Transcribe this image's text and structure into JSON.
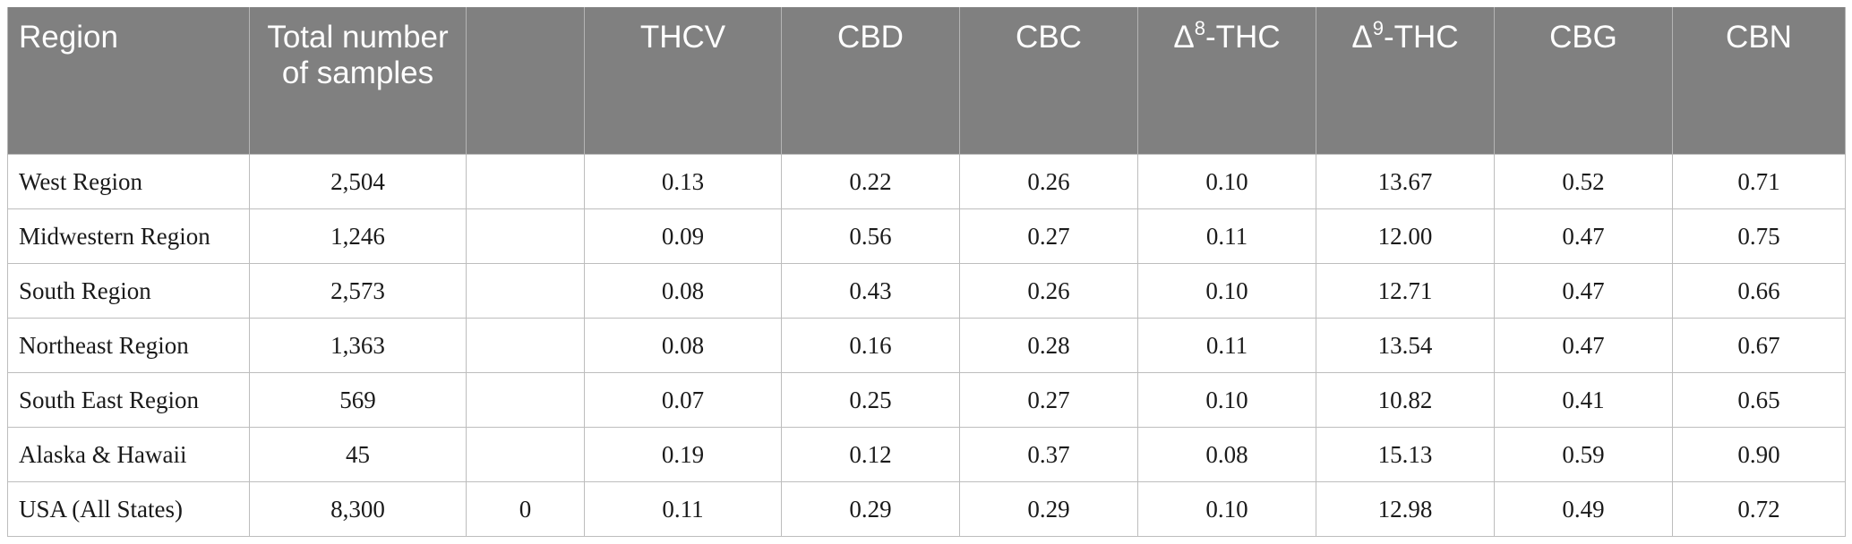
{
  "table": {
    "headers": {
      "region": "Region",
      "total": "Total number of samples",
      "blank": "",
      "thcv": "THCV",
      "cbd": "CBD",
      "cbc": "CBC",
      "d8_prefix": "Δ",
      "d8_sup": "8",
      "d8_suffix": "-THC",
      "d9_prefix": "Δ",
      "d9_sup": "9",
      "d9_suffix": "-THC",
      "cbg": "CBG",
      "cbn": "CBN"
    },
    "rows": [
      {
        "region": "West Region",
        "total": "2,504",
        "blank": "",
        "thcv": "0.13",
        "cbd": "0.22",
        "cbc": "0.26",
        "d8": "0.10",
        "d9": "13.67",
        "cbg": "0.52",
        "cbn": "0.71"
      },
      {
        "region": "Midwestern Region",
        "total": "1,246",
        "blank": "",
        "thcv": "0.09",
        "cbd": "0.56",
        "cbc": "0.27",
        "d8": "0.11",
        "d9": "12.00",
        "cbg": "0.47",
        "cbn": "0.75"
      },
      {
        "region": "South Region",
        "total": "2,573",
        "blank": "",
        "thcv": "0.08",
        "cbd": "0.43",
        "cbc": "0.26",
        "d8": "0.10",
        "d9": "12.71",
        "cbg": "0.47",
        "cbn": "0.66"
      },
      {
        "region": "Northeast Region",
        "total": "1,363",
        "blank": "",
        "thcv": "0.08",
        "cbd": "0.16",
        "cbc": "0.28",
        "d8": "0.11",
        "d9": "13.54",
        "cbg": "0.47",
        "cbn": "0.67"
      },
      {
        "region": "South East Region",
        "total": "569",
        "blank": "",
        "thcv": "0.07",
        "cbd": "0.25",
        "cbc": "0.27",
        "d8": "0.10",
        "d9": "10.82",
        "cbg": "0.41",
        "cbn": "0.65"
      },
      {
        "region": "Alaska & Hawaii",
        "total": "45",
        "blank": "",
        "thcv": "0.19",
        "cbd": "0.12",
        "cbc": "0.37",
        "d8": "0.08",
        "d9": "15.13",
        "cbg": "0.59",
        "cbn": "0.90"
      },
      {
        "region": "USA (All States)",
        "total": "8,300",
        "blank": "0",
        "thcv": "0.11",
        "cbd": "0.29",
        "cbc": "0.29",
        "d8": "0.10",
        "d9": "12.98",
        "cbg": "0.49",
        "cbn": "0.72"
      }
    ]
  }
}
